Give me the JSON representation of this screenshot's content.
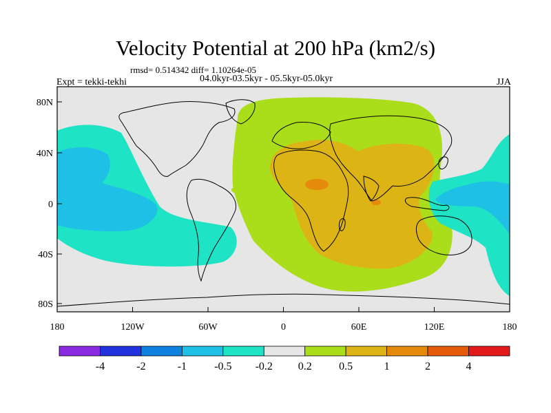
{
  "title": "Velocity Potential at 200 hPa (km2/s)",
  "stats_line": "rmsd= 0.514342 diff= 1.10264e-05",
  "period_line": "04.0kyr-03.5kyr - 05.5kyr-05.0kyr",
  "experiment": "Expt = tekki-tekhi",
  "season": "JJA",
  "axes": {
    "lon_ticks": [
      "180",
      "120W",
      "60W",
      "0",
      "60E",
      "120E",
      "180"
    ],
    "lat_ticks": [
      "80N",
      "40N",
      "0",
      "40S",
      "80S"
    ]
  },
  "colorbar": {
    "colors": [
      "#8a2be2",
      "#2233dd",
      "#0f82e0",
      "#1ec0e6",
      "#1ee3c5",
      "#e6e6e6",
      "#aadd1a",
      "#dcb416",
      "#e68a0c",
      "#e65a0c",
      "#e21a1a"
    ],
    "labels": [
      "-4",
      "-2",
      "-1",
      "-0.5",
      "-0.2",
      "0.2",
      "0.5",
      "1",
      "2",
      "4"
    ]
  },
  "field_colors": {
    "neutral": "#e6e6e6",
    "teal": "#1ee3c5",
    "cyan": "#1ec0e6",
    "light_green": "#aadd1a",
    "gold": "#dcb416",
    "orange": "#e68a0c",
    "coastline": "#000000"
  }
}
